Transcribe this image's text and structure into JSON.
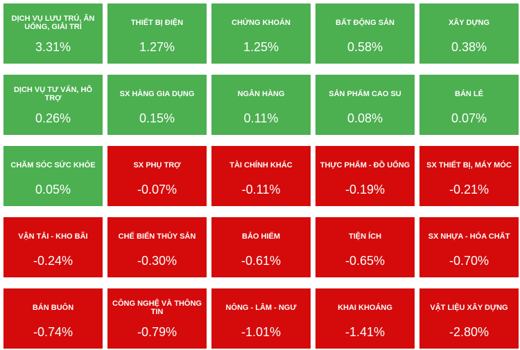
{
  "tiles": [
    {
      "label": "DỊCH VỤ LƯU TRÚ, ĂN UỐNG, GIẢI TRÍ",
      "value": "3.31%",
      "color": "#4caf50"
    },
    {
      "label": "THIẾT BỊ ĐIỆN",
      "value": "1.27%",
      "color": "#4caf50"
    },
    {
      "label": "CHỨNG KHOÁN",
      "value": "1.25%",
      "color": "#4caf50"
    },
    {
      "label": "BẤT ĐỘNG SẢN",
      "value": "0.58%",
      "color": "#4caf50"
    },
    {
      "label": "XÂY DỰNG",
      "value": "0.38%",
      "color": "#4caf50"
    },
    {
      "label": "DỊCH VỤ TƯ VẤN, HỖ TRỢ",
      "value": "0.26%",
      "color": "#4caf50"
    },
    {
      "label": "SX HÀNG GIA DỤNG",
      "value": "0.15%",
      "color": "#4caf50"
    },
    {
      "label": "NGÂN HÀNG",
      "value": "0.11%",
      "color": "#4caf50"
    },
    {
      "label": "SẢN PHẨM CAO SU",
      "value": "0.08%",
      "color": "#4caf50"
    },
    {
      "label": "BÁN LẺ",
      "value": "0.07%",
      "color": "#4caf50"
    },
    {
      "label": "CHĂM SÓC SỨC KHỎE",
      "value": "0.05%",
      "color": "#4caf50"
    },
    {
      "label": "SX PHỤ TRỢ",
      "value": "-0.07%",
      "color": "#d50b0b"
    },
    {
      "label": "TÀI CHÍNH KHÁC",
      "value": "-0.11%",
      "color": "#d50b0b"
    },
    {
      "label": "THỰC PHẨM - ĐỒ UỐNG",
      "value": "-0.19%",
      "color": "#d50b0b"
    },
    {
      "label": "SX THIẾT BỊ, MÁY MÓC",
      "value": "-0.21%",
      "color": "#d50b0b"
    },
    {
      "label": "VẬN TẢI - KHO BÃI",
      "value": "-0.24%",
      "color": "#d50b0b"
    },
    {
      "label": "CHẾ BIẾN THỦY SẢN",
      "value": "-0.30%",
      "color": "#d50b0b"
    },
    {
      "label": "BẢO HIỂM",
      "value": "-0.61%",
      "color": "#d50b0b"
    },
    {
      "label": "TIỆN ÍCH",
      "value": "-0.65%",
      "color": "#d50b0b"
    },
    {
      "label": "SX NHỰA - HÓA CHẤT",
      "value": "-0.70%",
      "color": "#d50b0b"
    },
    {
      "label": "BÁN BUÔN",
      "value": "-0.74%",
      "color": "#d50b0b"
    },
    {
      "label": "CÔNG NGHỆ VÀ THÔNG TIN",
      "value": "-0.79%",
      "color": "#d50b0b"
    },
    {
      "label": "NÔNG - LÂM - NGƯ",
      "value": "-1.01%",
      "color": "#d50b0b"
    },
    {
      "label": "KHAI KHOÁNG",
      "value": "-1.41%",
      "color": "#d50b0b"
    },
    {
      "label": "VẬT LIỆU XÂY DỰNG",
      "value": "-2.80%",
      "color": "#d50b0b"
    }
  ]
}
